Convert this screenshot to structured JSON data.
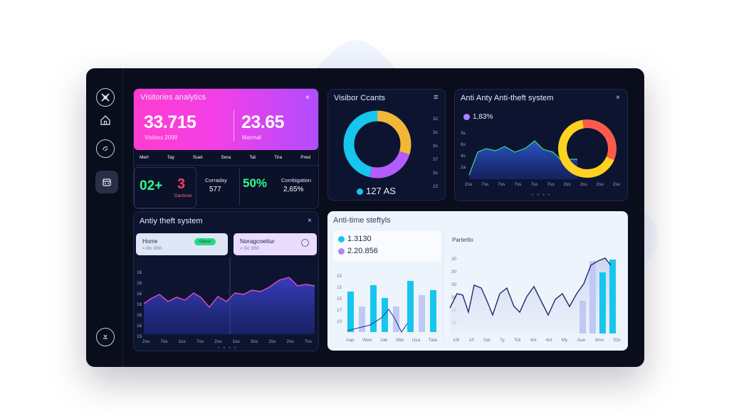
{
  "colors": {
    "accent_pink": "#ff3ccf",
    "accent_cyan": "#16c6ee",
    "accent_green": "#2bff8d",
    "accent_red": "#ff3b6b",
    "accent_violet": "#b084ff",
    "panel_bg": "#0d1430"
  },
  "sidebar": {
    "icons": [
      "tools-icon",
      "home-icon",
      "chat-icon",
      "storage-icon",
      "settings-icon"
    ]
  },
  "visitors_analytics": {
    "title": "Visitories analytics",
    "close": "×",
    "value_left": "33.715",
    "label_left": "Visitors 2099",
    "value_right": "23.65",
    "label_right": "Marmal",
    "days": [
      "Merl",
      "Tay",
      "Suet",
      "Sera",
      "Tat",
      "Tira",
      "Pred"
    ]
  },
  "metrics": {
    "m1": "02+",
    "m2": "3",
    "m2_label": "Darbose",
    "m3_label": "Corraday",
    "m3_value": "577",
    "m4": "50%",
    "m5_label": "Combigation",
    "m5_value": "2,65%"
  },
  "visitor_counts": {
    "title": "Visibor Ccants",
    "menu": "≡",
    "total": "127 AS",
    "side_ticks": [
      "32",
      "3s",
      "3s",
      "37",
      "3s",
      "22"
    ]
  },
  "anti_theft_top": {
    "title": "Anti Anty Anti-theft system",
    "close": "×",
    "legend_value": "1,83%",
    "y_ticks": [
      "3s",
      "6s",
      "4s",
      "2a"
    ],
    "x_ticks": [
      "2ss",
      "7ss",
      "7ss",
      "7ss",
      "7ss",
      "7ss",
      "2ss",
      "2ss",
      "2ss",
      "2ss"
    ]
  },
  "anti_theft_bottom": {
    "title": "Antiy theft system",
    "close": "×",
    "card_a_title": "Horre",
    "card_a_sub": "≈ Gc 3S0",
    "card_a_badge": "Ganss",
    "card_b_title": "Noragcoetiur",
    "card_b_sub": "≈ Gc 3S0",
    "y_ticks": [
      "16",
      "16",
      "16",
      "16",
      "16",
      "16",
      "15"
    ],
    "x_ticks": [
      "2ss",
      "7ss",
      "1ss",
      "7ss",
      "2ss",
      "1ss",
      "3ss",
      "2ss",
      "2ss",
      "7ss"
    ]
  },
  "anti_time": {
    "title": "Anti-time steftyls",
    "legend_a": "1.3130",
    "legend_b": "2.20.856",
    "chart_label": "Parterllo",
    "left_y_ticks": [
      "15",
      "15",
      "15",
      "17",
      "10"
    ],
    "left_x_ticks": [
      "Aap",
      "Wee",
      "2ak",
      "Wal",
      "Usa",
      "Tata"
    ],
    "right_y_ticks": [
      "30",
      "30",
      "30",
      "30",
      "10",
      "10"
    ],
    "right_x_ticks": [
      "10t",
      "1/t",
      "Sat",
      "Ty",
      "Tsll",
      "4st",
      "4st",
      "My",
      "Aue",
      "3me",
      "53s"
    ]
  }
}
